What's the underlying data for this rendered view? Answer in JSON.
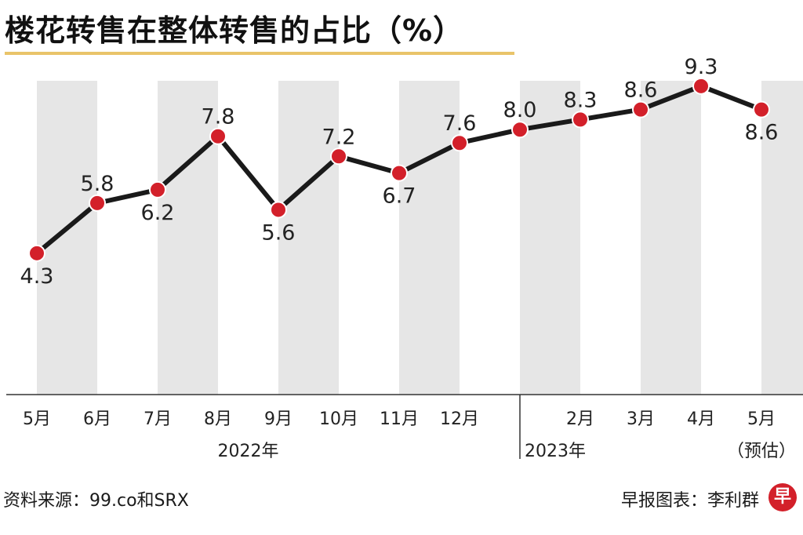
{
  "title": "楼花转售在整体转售的占比（%）",
  "colors": {
    "line": "#1a1a1a",
    "marker": "#d3202a",
    "band": "#e6e6e6",
    "accent": "#e9c46a"
  },
  "chart_data": {
    "type": "line",
    "title": "楼花转售在整体转售的占比（%）",
    "ylabel": "%",
    "ylim": [
      0,
      10
    ],
    "categories": [
      "5月",
      "6月",
      "7月",
      "8月",
      "9月",
      "10月",
      "11月",
      "12月",
      "",
      "2月",
      "3月",
      "4月",
      "5月"
    ],
    "values": [
      4.3,
      5.8,
      6.2,
      7.8,
      5.6,
      7.2,
      6.7,
      7.6,
      8.0,
      8.3,
      8.6,
      9.3,
      8.6
    ],
    "value_labels": [
      "4.3",
      "5.8",
      "6.2",
      "7.8",
      "5.6",
      "7.2",
      "6.7",
      "7.6",
      "8.0",
      "8.3",
      "8.6",
      "9.3",
      "8.6"
    ],
    "label_position": [
      "below",
      "above",
      "below",
      "above",
      "below",
      "above",
      "below",
      "above",
      "above",
      "above",
      "above",
      "above",
      "below"
    ],
    "shaded_categories": [
      0,
      2,
      4,
      6,
      8,
      10,
      12
    ],
    "year_groups": [
      {
        "label": "2022年",
        "from": 0,
        "to": 7
      },
      {
        "label": "2023年",
        "from": 8,
        "to": 12
      }
    ],
    "estimate_note": "（预估）",
    "estimate_index": 12
  },
  "footer": {
    "source": "资料来源：99.co和SRX",
    "credit": "早报图表：李利群",
    "logo": "早"
  }
}
